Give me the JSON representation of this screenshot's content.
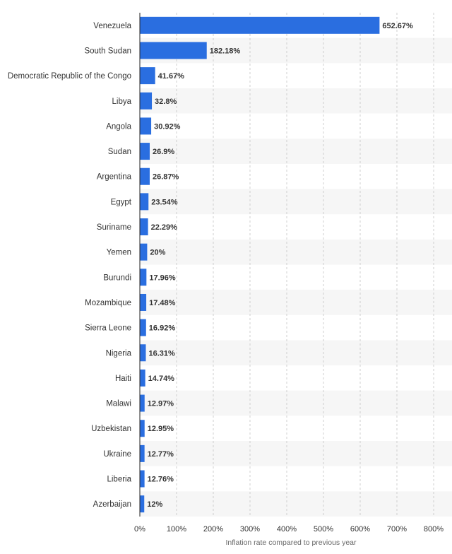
{
  "chart_data": {
    "type": "bar",
    "orientation": "horizontal",
    "categories": [
      "Venezuela",
      "South Sudan",
      "Democratic Republic of the Congo",
      "Libya",
      "Angola",
      "Sudan",
      "Argentina",
      "Egypt",
      "Suriname",
      "Yemen",
      "Burundi",
      "Mozambique",
      "Sierra Leone",
      "Nigeria",
      "Haiti",
      "Malawi",
      "Uzbekistan",
      "Ukraine",
      "Liberia",
      "Azerbaijan"
    ],
    "values": [
      652.67,
      182.18,
      41.67,
      32.8,
      30.92,
      26.9,
      26.87,
      23.54,
      22.29,
      20,
      17.96,
      17.48,
      16.92,
      16.31,
      14.74,
      12.97,
      12.95,
      12.77,
      12.76,
      12
    ],
    "value_labels": [
      "652.67%",
      "182.18%",
      "41.67%",
      "32.8%",
      "30.92%",
      "26.9%",
      "26.87%",
      "23.54%",
      "22.29%",
      "20%",
      "17.96%",
      "17.48%",
      "16.92%",
      "16.31%",
      "14.74%",
      "12.97%",
      "12.95%",
      "12.77%",
      "12.76%",
      "12%"
    ],
    "xticks": [
      0,
      100,
      200,
      300,
      400,
      500,
      600,
      700,
      800
    ],
    "xtick_labels": [
      "0%",
      "100%",
      "200%",
      "300%",
      "400%",
      "500%",
      "600%",
      "700%",
      "800%"
    ],
    "xlim": [
      0,
      800
    ],
    "xlabel": "Inflation rate compared to previous year",
    "ylabel": "",
    "title": "",
    "grid": "vertical dashed",
    "legend": "none",
    "colors": {
      "bar": "#2a6ee0",
      "band": "#f6f6f6",
      "grid": "#cfcfcf",
      "axis": "#222222"
    }
  }
}
